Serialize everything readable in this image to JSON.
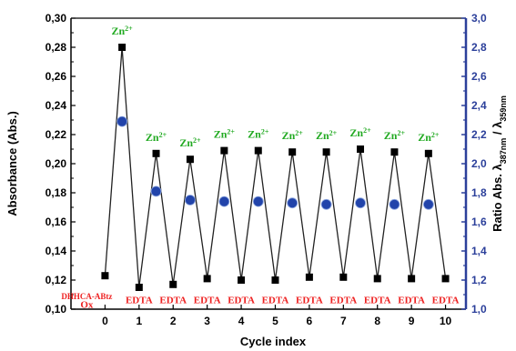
{
  "chart_data": {
    "type": "line",
    "xlabel": "Cycle index",
    "ylabel": "Absorbance (Abs.)",
    "y2label_parts": {
      "prefix": "Ratio Abs. ",
      "lambda": "λ",
      "sub1": "387nm",
      "slash": " / ",
      "sub2": "359nm"
    },
    "xlim": [
      -1,
      10.6
    ],
    "xticks": [
      0,
      1,
      2,
      3,
      4,
      5,
      6,
      7,
      8,
      9,
      10
    ],
    "ylim": [
      0.1,
      0.3
    ],
    "yticks": [
      "0,10",
      "0,12",
      "0,14",
      "0,16",
      "0,18",
      "0,20",
      "0,22",
      "0,24",
      "0,26",
      "0,28",
      "0,30"
    ],
    "y2lim": [
      1.0,
      3.0
    ],
    "y2ticks": [
      "1,0",
      "1,2",
      "1,4",
      "1,6",
      "1,8",
      "2,0",
      "2,2",
      "2,4",
      "2,6",
      "2,8",
      "3,0"
    ],
    "colors": {
      "axis_right": "#2b3f9a",
      "zn_label": "#22aa22",
      "edta_label": "#ee2222",
      "square": "#000000",
      "circle": "#2244aa"
    },
    "series": [
      {
        "name": "Absorbance",
        "marker": "square",
        "x": [
          0,
          0.5,
          1,
          1.5,
          2,
          2.5,
          3,
          3.5,
          4,
          4.5,
          5,
          5.5,
          6,
          6.5,
          7,
          7.5,
          8,
          8.5,
          9,
          9.5,
          10
        ],
        "y": [
          0.123,
          0.28,
          0.115,
          0.207,
          0.117,
          0.203,
          0.121,
          0.209,
          0.12,
          0.209,
          0.12,
          0.208,
          0.122,
          0.208,
          0.122,
          0.21,
          0.121,
          0.208,
          0.121,
          0.207,
          0.121
        ]
      },
      {
        "name": "Ratio",
        "marker": "circle",
        "axis": "right",
        "x": [
          0.5,
          1.5,
          2.5,
          3.5,
          4.5,
          5.5,
          6.5,
          7.5,
          8.5,
          9.5
        ],
        "y": [
          2.29,
          1.81,
          1.75,
          1.74,
          1.74,
          1.73,
          1.72,
          1.73,
          1.72,
          1.72
        ]
      }
    ],
    "annotations": {
      "zn_base": "Zn",
      "zn_sup": "2+",
      "zn_positions": [
        0.5,
        1.5,
        2.5,
        3.5,
        4.5,
        5.5,
        6.5,
        7.5,
        8.5,
        9.5
      ],
      "edta": "EDTA",
      "edta_positions": [
        1,
        2,
        3,
        4,
        5,
        6,
        7,
        8,
        9,
        10
      ],
      "start_line1": "DHHCA-ABtz",
      "start_line2": "Ox"
    }
  }
}
